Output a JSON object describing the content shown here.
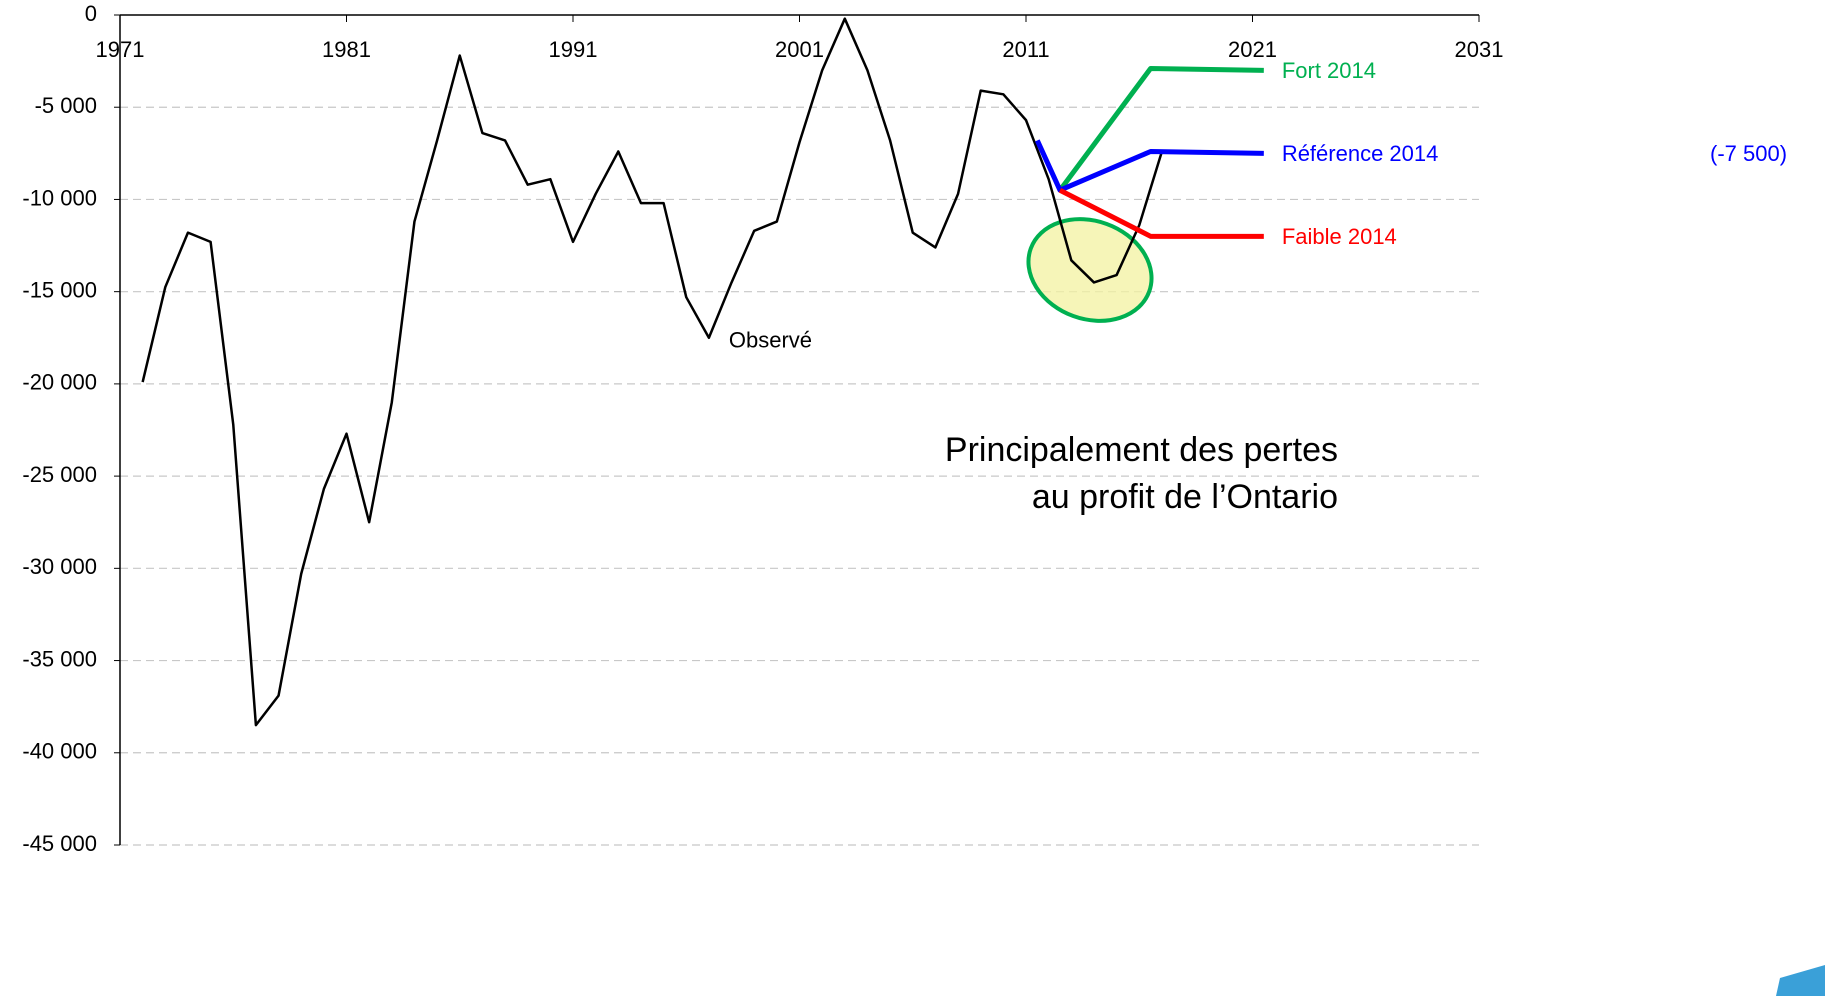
{
  "chart_data": {
    "type": "line",
    "series": [
      {
        "name": "Observé",
        "color": "#000000",
        "x": [
          1972,
          1973,
          1974,
          1975,
          1976,
          1977,
          1978,
          1979,
          1980,
          1981,
          1982,
          1983,
          1984,
          1985,
          1986,
          1987,
          1988,
          1989,
          1990,
          1991,
          1992,
          1993,
          1994,
          1995,
          1996,
          1997,
          1998,
          1999,
          2000,
          2001,
          2002,
          2003,
          2004,
          2005,
          2006,
          2007,
          2008,
          2009,
          2010,
          2011,
          2012,
          2013,
          2014,
          2015,
          2016,
          2017
        ],
        "values": [
          -19900,
          -14750,
          -11800,
          -12300,
          -22200,
          -38500,
          -36900,
          -30300,
          -25700,
          -22700,
          -27500,
          -21000,
          -11200,
          -6800,
          -2200,
          -6400,
          -6800,
          -9200,
          -8900,
          -12300,
          -9700,
          -7400,
          -10200,
          -10200,
          -15300,
          -17500,
          -14500,
          -11700,
          -11200,
          -6900,
          -3000,
          -200,
          -3000,
          -6800,
          -11800,
          -12600,
          -9700,
          -4100,
          -4300,
          -5700,
          -8900,
          -13300,
          -14500,
          -14100,
          -11400,
          -7400
        ]
      },
      {
        "name": "Fort 2014",
        "color": "#00b050",
        "x": [
          2012.5,
          2016.5,
          2021.5
        ],
        "values": [
          -9500,
          -2900,
          -3000
        ]
      },
      {
        "name": "Référence 2014",
        "color": "#0000ff",
        "x": [
          2011.5,
          2012.5,
          2016.5,
          2021.5
        ],
        "values": [
          -6800,
          -9500,
          -7400,
          -7500
        ]
      },
      {
        "name": "Faible 2014",
        "color": "#ff0000",
        "x": [
          2012.5,
          2016.5,
          2021.5
        ],
        "values": [
          -9500,
          -12000,
          -12000
        ]
      }
    ],
    "reference_note": "(-7 500)",
    "annotation": [
      "Principalement des pertes",
      "au profit de l’Ontario"
    ],
    "xlim": [
      1971,
      2031
    ],
    "xticks": [
      1971,
      1981,
      1991,
      2001,
      2011,
      2021,
      2031
    ],
    "ylim": [
      -45000,
      0
    ],
    "yticks": [
      0,
      {
        "value": -5000,
        "label": "-5 000"
      },
      {
        "value": -10000,
        "label": "-10 000"
      },
      {
        "value": -15000,
        "label": "-15 000"
      },
      {
        "value": -20000,
        "label": "-20 000"
      },
      {
        "value": -25000,
        "label": "-25 000"
      },
      {
        "value": -30000,
        "label": "-30 000"
      },
      {
        "value": -35000,
        "label": "-35 000"
      },
      {
        "value": -40000,
        "label": "-40 000"
      },
      {
        "value": -45000,
        "label": "-45 000"
      }
    ],
    "grid": true
  }
}
